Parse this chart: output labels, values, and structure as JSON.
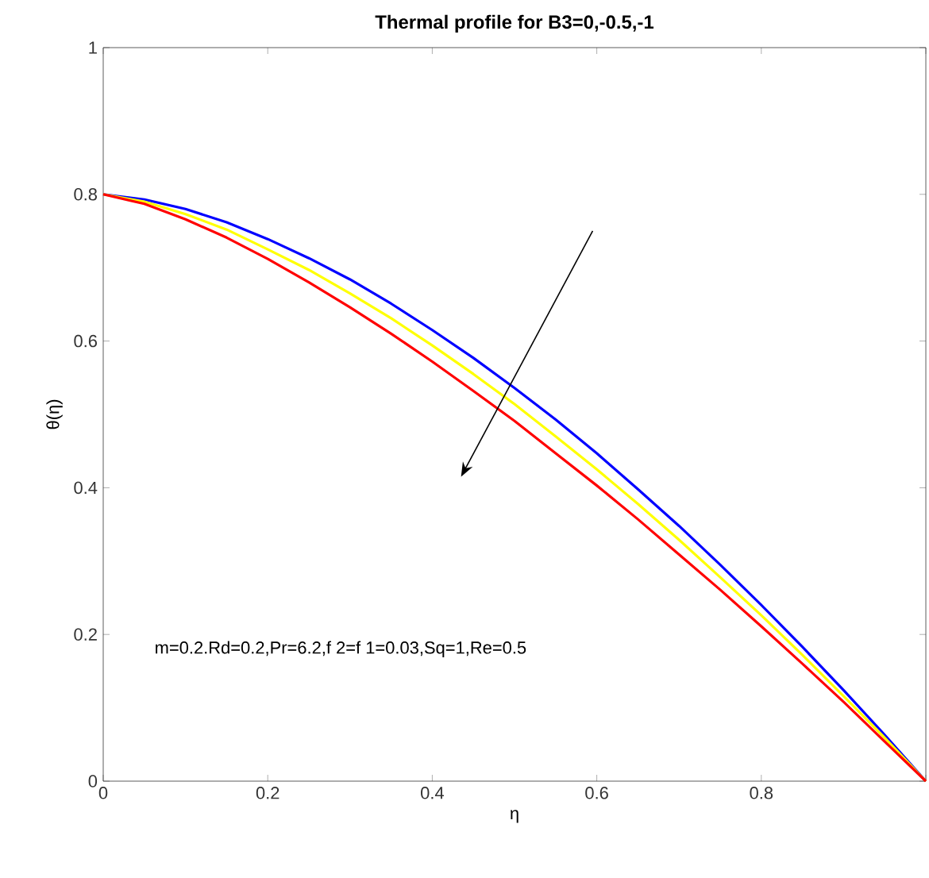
{
  "chart_data": {
    "type": "line",
    "title": "Thermal profile for B3=0,-0.5,-1",
    "xlabel": "η",
    "ylabel": "θ(η)",
    "x": [
      0,
      0.05,
      0.1,
      0.15,
      0.2,
      0.25,
      0.3,
      0.35,
      0.4,
      0.45,
      0.5,
      0.55,
      0.6,
      0.65,
      0.7,
      0.75,
      0.8,
      0.85,
      0.9,
      0.95,
      1
    ],
    "series": [
      {
        "color": "#0000ff",
        "values": [
          0.8,
          0.793,
          0.78,
          0.762,
          0.739,
          0.713,
          0.684,
          0.651,
          0.615,
          0.577,
          0.536,
          0.493,
          0.447,
          0.398,
          0.348,
          0.295,
          0.24,
          0.183,
          0.124,
          0.063,
          0
        ]
      },
      {
        "color": "#ffff00",
        "values": [
          0.8,
          0.79,
          0.773,
          0.752,
          0.725,
          0.697,
          0.665,
          0.631,
          0.594,
          0.555,
          0.514,
          0.47,
          0.425,
          0.378,
          0.329,
          0.278,
          0.226,
          0.172,
          0.116,
          0.059,
          0
        ]
      },
      {
        "color": "#ff0000",
        "values": [
          0.8,
          0.787,
          0.766,
          0.741,
          0.712,
          0.68,
          0.646,
          0.61,
          0.572,
          0.532,
          0.491,
          0.447,
          0.403,
          0.357,
          0.309,
          0.261,
          0.211,
          0.16,
          0.108,
          0.054,
          0
        ]
      }
    ],
    "xlim": [
      0,
      1
    ],
    "ylim": [
      0,
      1
    ],
    "xticks": [
      0,
      0.2,
      0.4,
      0.6,
      0.8,
      {
        "value": 1,
        "label": null
      }
    ],
    "yticks": [
      0,
      0.2,
      0.4,
      0.6,
      0.8,
      1
    ],
    "grid": false,
    "marker": "none",
    "line_style": "solid",
    "annotations": [
      "m=0.2.Rd=0.2,Pr=6.2,f 2=f 1=0.03,Sq=1,Re=0.5"
    ]
  }
}
